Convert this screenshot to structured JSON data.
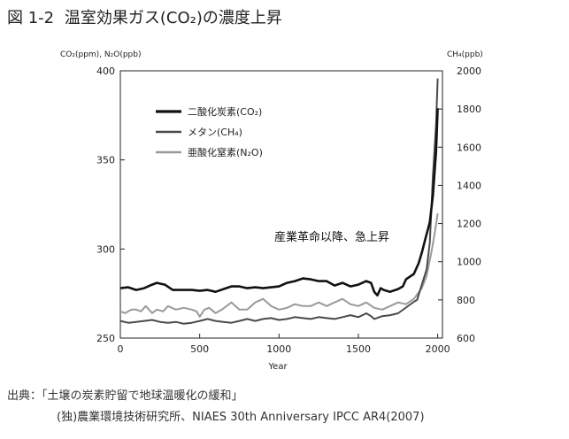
{
  "figure": {
    "number": "図 1-2",
    "title": "温室効果ガス(CO₂)の濃度上昇"
  },
  "source": {
    "line1": "出典：「土壌の炭素貯留で地球温暖化の緩和」",
    "line2": "(独)農業環境技術研究所、NIAES 30th Anniversary IPCC AR4(2007)"
  },
  "chart_data": {
    "type": "line",
    "xlabel": "Year",
    "ylabel_left": "CO₂(ppm), N₂O(ppb)",
    "ylabel_right": "CH₄(ppb)",
    "xlim": [
      0,
      2030
    ],
    "ylim_left": [
      250,
      400
    ],
    "ylim_right": [
      600,
      2000
    ],
    "x_ticks": [
      0,
      500,
      1000,
      1500,
      2000
    ],
    "y_ticks_left": [
      250,
      300,
      350,
      400
    ],
    "y_ticks_right": [
      600,
      800,
      1000,
      1200,
      1400,
      1600,
      1800,
      2000
    ],
    "annotation": "産業革命以降、急上昇",
    "legend_position": "top-left",
    "grid": false,
    "series": [
      {
        "name": "二酸化炭素(CO₂)",
        "axis": "left",
        "color": "#111111",
        "points": [
          [
            0,
            278
          ],
          [
            50,
            278.5
          ],
          [
            100,
            277
          ],
          [
            150,
            278
          ],
          [
            200,
            280
          ],
          [
            230,
            281
          ],
          [
            280,
            280
          ],
          [
            330,
            277
          ],
          [
            400,
            277
          ],
          [
            450,
            277
          ],
          [
            500,
            276.5
          ],
          [
            550,
            277
          ],
          [
            600,
            276
          ],
          [
            650,
            277.5
          ],
          [
            700,
            279
          ],
          [
            750,
            279
          ],
          [
            800,
            278
          ],
          [
            850,
            278.5
          ],
          [
            900,
            278
          ],
          [
            950,
            278.5
          ],
          [
            1000,
            279
          ],
          [
            1050,
            281
          ],
          [
            1100,
            282
          ],
          [
            1150,
            283.5
          ],
          [
            1200,
            283
          ],
          [
            1250,
            282
          ],
          [
            1300,
            282
          ],
          [
            1350,
            279.5
          ],
          [
            1400,
            281
          ],
          [
            1450,
            279
          ],
          [
            1500,
            280
          ],
          [
            1550,
            282
          ],
          [
            1580,
            281
          ],
          [
            1600,
            276
          ],
          [
            1620,
            274
          ],
          [
            1640,
            278
          ],
          [
            1660,
            277
          ],
          [
            1700,
            276
          ],
          [
            1750,
            277.5
          ],
          [
            1780,
            279
          ],
          [
            1800,
            283
          ],
          [
            1850,
            286
          ],
          [
            1880,
            292
          ],
          [
            1900,
            298
          ],
          [
            1920,
            305
          ],
          [
            1950,
            315
          ],
          [
            1970,
            330
          ],
          [
            1990,
            355
          ],
          [
            2000,
            379
          ]
        ]
      },
      {
        "name": "メタン(CH₄)",
        "axis": "right",
        "color": "#4a4a4a",
        "points": [
          [
            0,
            690
          ],
          [
            50,
            680
          ],
          [
            100,
            685
          ],
          [
            150,
            690
          ],
          [
            200,
            695
          ],
          [
            250,
            685
          ],
          [
            300,
            680
          ],
          [
            350,
            685
          ],
          [
            400,
            675
          ],
          [
            450,
            680
          ],
          [
            500,
            690
          ],
          [
            550,
            700
          ],
          [
            600,
            690
          ],
          [
            650,
            685
          ],
          [
            700,
            680
          ],
          [
            750,
            690
          ],
          [
            800,
            700
          ],
          [
            850,
            690
          ],
          [
            900,
            700
          ],
          [
            950,
            705
          ],
          [
            1000,
            695
          ],
          [
            1050,
            700
          ],
          [
            1100,
            710
          ],
          [
            1150,
            705
          ],
          [
            1200,
            700
          ],
          [
            1250,
            710
          ],
          [
            1300,
            705
          ],
          [
            1350,
            700
          ],
          [
            1400,
            710
          ],
          [
            1450,
            720
          ],
          [
            1500,
            710
          ],
          [
            1550,
            730
          ],
          [
            1580,
            715
          ],
          [
            1600,
            700
          ],
          [
            1650,
            715
          ],
          [
            1700,
            720
          ],
          [
            1750,
            730
          ],
          [
            1800,
            760
          ],
          [
            1850,
            790
          ],
          [
            1870,
            800
          ],
          [
            1900,
            880
          ],
          [
            1930,
            960
          ],
          [
            1950,
            1100
          ],
          [
            1970,
            1450
          ],
          [
            1990,
            1720
          ],
          [
            2000,
            1960
          ]
        ]
      },
      {
        "name": "亜酸化窒素(N₂O)",
        "axis": "left",
        "color": "#9a9a9a",
        "points": [
          [
            0,
            265
          ],
          [
            30,
            264
          ],
          [
            70,
            266
          ],
          [
            100,
            266
          ],
          [
            130,
            265
          ],
          [
            160,
            268
          ],
          [
            200,
            264
          ],
          [
            230,
            266
          ],
          [
            270,
            265
          ],
          [
            300,
            268
          ],
          [
            350,
            266
          ],
          [
            400,
            267
          ],
          [
            450,
            266
          ],
          [
            480,
            265
          ],
          [
            500,
            262
          ],
          [
            530,
            266
          ],
          [
            560,
            267
          ],
          [
            600,
            264
          ],
          [
            640,
            266
          ],
          [
            700,
            270
          ],
          [
            750,
            266
          ],
          [
            800,
            266
          ],
          [
            850,
            270
          ],
          [
            900,
            272
          ],
          [
            950,
            268
          ],
          [
            1000,
            266
          ],
          [
            1050,
            267
          ],
          [
            1100,
            269
          ],
          [
            1150,
            268
          ],
          [
            1200,
            268
          ],
          [
            1250,
            270
          ],
          [
            1300,
            268
          ],
          [
            1350,
            270
          ],
          [
            1400,
            272
          ],
          [
            1450,
            269
          ],
          [
            1500,
            268
          ],
          [
            1550,
            270
          ],
          [
            1600,
            267
          ],
          [
            1650,
            266
          ],
          [
            1700,
            268
          ],
          [
            1750,
            270
          ],
          [
            1800,
            269
          ],
          [
            1850,
            272
          ],
          [
            1900,
            278
          ],
          [
            1930,
            285
          ],
          [
            1960,
            298
          ],
          [
            1980,
            308
          ],
          [
            2000,
            320
          ]
        ]
      }
    ]
  }
}
